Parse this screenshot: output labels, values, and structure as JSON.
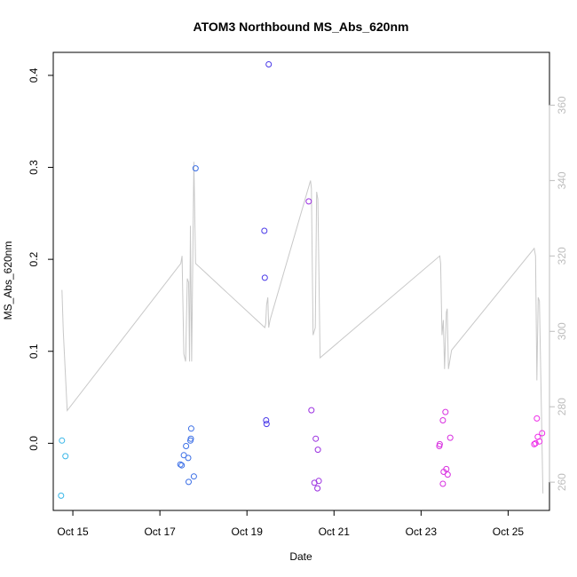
{
  "chart_data": {
    "type": "scatter",
    "title": "ATOM3 Northbound MS_Abs_620nm",
    "xlabel": "Date",
    "ylabel": "MS_Abs_620nm",
    "xlim": [
      14.55,
      25.95
    ],
    "ylim": [
      -0.073,
      0.425
    ],
    "y2lim": [
      252.5,
      374
    ],
    "x_ticks": [
      {
        "v": 15,
        "label": "Oct 15"
      },
      {
        "v": 17,
        "label": "Oct 17"
      },
      {
        "v": 19,
        "label": "Oct 19"
      },
      {
        "v": 21,
        "label": "Oct 21"
      },
      {
        "v": 23,
        "label": "Oct 23"
      },
      {
        "v": 25,
        "label": "Oct 25"
      }
    ],
    "y_ticks": [
      {
        "v": 0,
        "label": "0.0"
      },
      {
        "v": 0.1,
        "label": "0.1"
      },
      {
        "v": 0.2,
        "label": "0.2"
      },
      {
        "v": 0.3,
        "label": "0.3"
      },
      {
        "v": 0.4,
        "label": "0.4"
      }
    ],
    "y2_ticks": [
      {
        "v": 260,
        "label": "260"
      },
      {
        "v": 280,
        "label": "280"
      },
      {
        "v": 300,
        "label": "300"
      },
      {
        "v": 320,
        "label": "320"
      },
      {
        "v": 340,
        "label": "340"
      },
      {
        "v": 360,
        "label": "360"
      }
    ],
    "grid": false,
    "points": [
      {
        "x": 14.73,
        "y": -0.057,
        "color": "#38b6e8"
      },
      {
        "x": 14.75,
        "y": 0.003,
        "color": "#38b6e8"
      },
      {
        "x": 14.83,
        "y": -0.014,
        "color": "#38b6e8"
      },
      {
        "x": 17.47,
        "y": -0.023,
        "color": "#3a6ee6"
      },
      {
        "x": 17.5,
        "y": -0.024,
        "color": "#3a6ee6"
      },
      {
        "x": 17.55,
        "y": -0.013,
        "color": "#3a6ee6"
      },
      {
        "x": 17.6,
        "y": -0.003,
        "color": "#3a6ee6"
      },
      {
        "x": 17.65,
        "y": -0.016,
        "color": "#3a6ee6"
      },
      {
        "x": 17.66,
        "y": -0.042,
        "color": "#3a6ee6"
      },
      {
        "x": 17.7,
        "y": 0.003,
        "color": "#3a6ee6"
      },
      {
        "x": 17.71,
        "y": 0.005,
        "color": "#3a6ee6"
      },
      {
        "x": 17.72,
        "y": 0.016,
        "color": "#3a6ee6"
      },
      {
        "x": 17.78,
        "y": -0.036,
        "color": "#3a6ee6"
      },
      {
        "x": 17.82,
        "y": 0.299,
        "color": "#3a6ee6"
      },
      {
        "x": 19.4,
        "y": 0.231,
        "color": "#4a3ae8"
      },
      {
        "x": 19.41,
        "y": 0.18,
        "color": "#4a3ae8"
      },
      {
        "x": 19.44,
        "y": 0.025,
        "color": "#4a3ae8"
      },
      {
        "x": 19.45,
        "y": 0.021,
        "color": "#4a3ae8"
      },
      {
        "x": 19.5,
        "y": 0.412,
        "color": "#4a3ae8"
      },
      {
        "x": 20.42,
        "y": 0.263,
        "color": "#9b30e0"
      },
      {
        "x": 20.48,
        "y": 0.036,
        "color": "#9b30e0"
      },
      {
        "x": 20.55,
        "y": -0.043,
        "color": "#9b30e0"
      },
      {
        "x": 20.58,
        "y": 0.005,
        "color": "#9b30e0"
      },
      {
        "x": 20.62,
        "y": -0.049,
        "color": "#9b30e0"
      },
      {
        "x": 20.63,
        "y": -0.007,
        "color": "#9b30e0"
      },
      {
        "x": 20.65,
        "y": -0.041,
        "color": "#9b30e0"
      },
      {
        "x": 23.42,
        "y": -0.003,
        "color": "#d830e0"
      },
      {
        "x": 23.43,
        "y": -0.001,
        "color": "#d830e0"
      },
      {
        "x": 23.5,
        "y": -0.044,
        "color": "#d830e0"
      },
      {
        "x": 23.52,
        "y": -0.031,
        "color": "#d830e0"
      },
      {
        "x": 23.5,
        "y": 0.025,
        "color": "#d830e0"
      },
      {
        "x": 23.56,
        "y": 0.034,
        "color": "#d830e0"
      },
      {
        "x": 23.58,
        "y": -0.028,
        "color": "#d830e0"
      },
      {
        "x": 23.61,
        "y": -0.034,
        "color": "#d830e0"
      },
      {
        "x": 23.67,
        "y": 0.006,
        "color": "#d830e0"
      },
      {
        "x": 25.6,
        "y": -0.001,
        "color": "#ee2ee8"
      },
      {
        "x": 25.63,
        "y": 0.0,
        "color": "#ee2ee8"
      },
      {
        "x": 25.66,
        "y": 0.027,
        "color": "#ee2ee8"
      },
      {
        "x": 25.68,
        "y": 0.007,
        "color": "#ee2ee8"
      },
      {
        "x": 25.72,
        "y": 0.002,
        "color": "#ee2ee8"
      },
      {
        "x": 25.78,
        "y": 0.011,
        "color": "#ee2ee8"
      }
    ],
    "line_y2": [
      [
        14.75,
        311
      ],
      [
        14.78,
        300
      ],
      [
        14.87,
        279
      ],
      [
        17.48,
        318
      ],
      [
        17.51,
        320
      ],
      [
        17.55,
        294
      ],
      [
        17.59,
        292
      ],
      [
        17.63,
        314
      ],
      [
        17.66,
        313
      ],
      [
        17.68,
        292
      ],
      [
        17.7,
        328
      ],
      [
        17.73,
        292
      ],
      [
        17.78,
        345
      ],
      [
        17.82,
        318
      ],
      [
        19.41,
        301
      ],
      [
        19.43,
        302
      ],
      [
        19.45,
        307
      ],
      [
        19.48,
        309
      ],
      [
        19.5,
        301
      ],
      [
        19.53,
        303
      ],
      [
        20.46,
        340
      ],
      [
        20.48,
        338
      ],
      [
        20.52,
        299
      ],
      [
        20.57,
        301
      ],
      [
        20.6,
        337
      ],
      [
        20.63,
        335
      ],
      [
        20.68,
        293
      ],
      [
        23.43,
        320
      ],
      [
        23.45,
        318
      ],
      [
        23.48,
        299
      ],
      [
        23.51,
        303
      ],
      [
        23.54,
        290
      ],
      [
        23.58,
        305
      ],
      [
        23.6,
        306
      ],
      [
        23.63,
        290
      ],
      [
        23.7,
        295
      ],
      [
        25.6,
        322
      ],
      [
        25.63,
        320
      ],
      [
        25.66,
        287
      ],
      [
        25.69,
        309
      ],
      [
        25.72,
        308
      ],
      [
        25.8,
        257
      ]
    ]
  }
}
